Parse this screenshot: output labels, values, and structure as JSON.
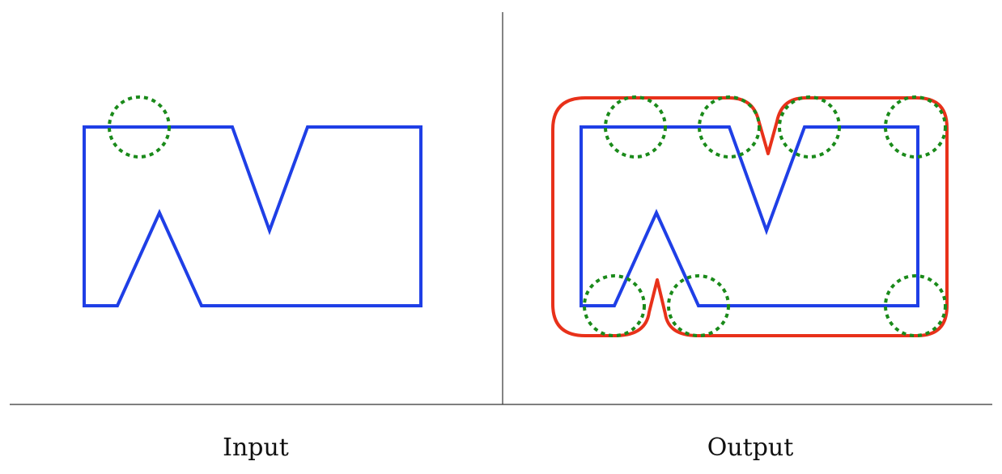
{
  "panels": {
    "left": {
      "caption": "Input"
    },
    "right": {
      "caption": "Output"
    }
  },
  "colors": {
    "polygon": "#1f3fe6",
    "offset_outline": "#e8311a",
    "probe_circle": "#1a8a1a",
    "divider": "#333333"
  }
}
